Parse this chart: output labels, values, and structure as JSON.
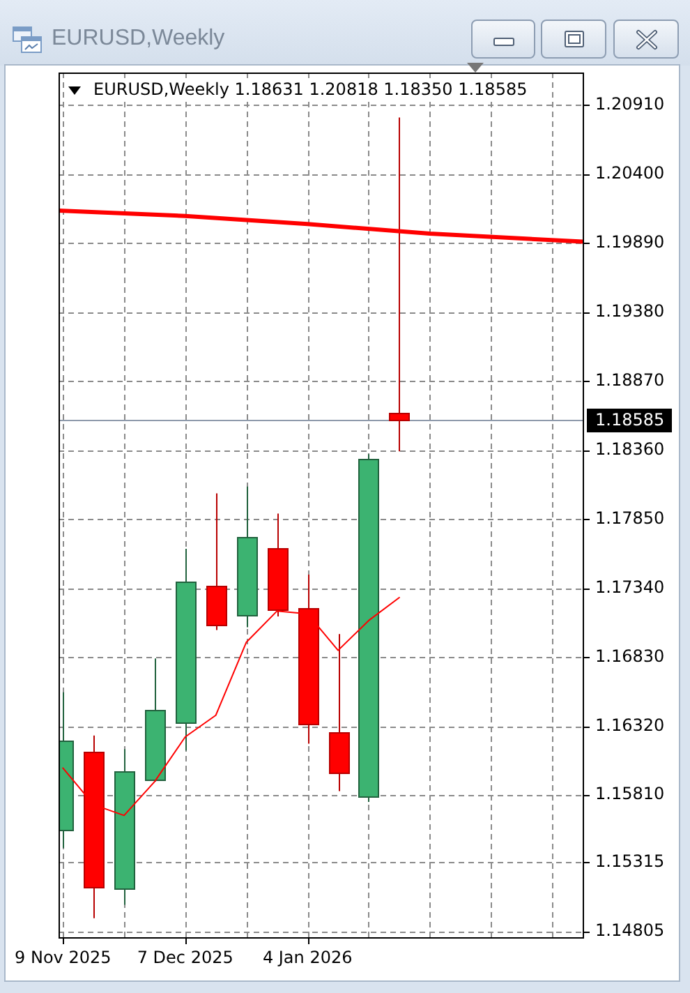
{
  "chart_data": {
    "type": "candlestick",
    "title": "EURUSD,Weekly",
    "subtitle": "EURUSD,Weekly 1.18631 1.20818 1.18350 1.18585",
    "x": [
      "2025-11-09",
      "2025-11-16",
      "2025-11-23",
      "2025-11-30",
      "2025-12-07",
      "2025-12-14",
      "2025-12-21",
      "2025-12-28",
      "2026-01-04",
      "2026-01-11",
      "2026-01-18",
      "2026-01-25"
    ],
    "ohlc": [
      [
        1.1555,
        1.1657,
        1.1542,
        1.1621
      ],
      [
        1.1613,
        1.1625,
        1.149,
        1.1513
      ],
      [
        1.1512,
        1.1615,
        1.15,
        1.1599
      ],
      [
        1.1592,
        1.1682,
        1.1591,
        1.1644
      ],
      [
        1.1635,
        1.1763,
        1.1614,
        1.1739
      ],
      [
        1.1736,
        1.1804,
        1.1703,
        1.1707
      ],
      [
        1.1714,
        1.1809,
        1.1705,
        1.1772
      ],
      [
        1.1764,
        1.1789,
        1.1713,
        1.1718
      ],
      [
        1.1719,
        1.1744,
        1.1619,
        1.1634
      ],
      [
        1.1628,
        1.17,
        1.1584,
        1.1598
      ],
      [
        1.158,
        1.1833,
        1.1576,
        1.1829
      ],
      [
        1.18631,
        1.20818,
        1.1835,
        1.18585
      ]
    ],
    "colors": [
      "#3cb371",
      "#ff0000",
      "#3cb371",
      "#3cb371",
      "#3cb371",
      "#ff0000",
      "#3cb371",
      "#ff0000",
      "#ff0000",
      "#ff0000",
      "#3cb371",
      "#ff0000"
    ],
    "series": [
      {
        "type": "line",
        "color": "#ff0000",
        "x": [
          "2025-11-09",
          "2025-11-16",
          "2025-11-23",
          "2025-11-30",
          "2025-12-07",
          "2025-12-14",
          "2025-12-21",
          "2025-12-28",
          "2026-01-04",
          "2026-01-11",
          "2026-01-18",
          "2026-01-25"
        ],
        "values": [
          1.1601,
          1.1574,
          1.1566,
          1.1591,
          1.1624,
          1.164,
          1.1694,
          1.1717,
          1.1715,
          1.1688,
          1.171,
          1.1727
        ]
      },
      {
        "type": "line",
        "color": "#ff0000",
        "x": [
          "2025-11-08",
          "2025-12-07",
          "2026-01-04",
          "2026-02-01",
          "2026-03-08"
        ],
        "values": [
          1.2013,
          1.2009,
          1.2003,
          1.1996,
          1.199
        ]
      }
    ],
    "xlim": [
      "2025-11-08",
      "2026-03-08"
    ],
    "xticks": [
      {
        "value": "2025-11-09",
        "label": "9 Nov 2025"
      },
      {
        "value": "2025-11-23",
        "label": null
      },
      {
        "value": "2025-12-07",
        "label": "7 Dec 2025"
      },
      {
        "value": "2025-12-21",
        "label": null
      },
      {
        "value": "2026-01-04",
        "label": "4 Jan 2026"
      },
      {
        "value": "2026-01-18",
        "label": null
      },
      {
        "value": "2026-02-01",
        "label": null
      },
      {
        "value": "2026-02-15",
        "label": null
      },
      {
        "value": "2026-03-01",
        "label": null
      }
    ],
    "ylim": [
      1.1476,
      1.2115
    ],
    "yticks": [
      {
        "value": 1.2091,
        "label": "1.20910"
      },
      {
        "value": 1.204,
        "label": "1.20400"
      },
      {
        "value": 1.1989,
        "label": "1.19890"
      },
      {
        "value": 1.1938,
        "label": "1.19380"
      },
      {
        "value": 1.1887,
        "label": "1.18870"
      },
      {
        "value": 1.1836,
        "label": "1.18360"
      },
      {
        "value": 1.1785,
        "label": "1.17850"
      },
      {
        "value": 1.1734,
        "label": "1.17340"
      },
      {
        "value": 1.1683,
        "label": "1.16830"
      },
      {
        "value": 1.1632,
        "label": "1.16320"
      },
      {
        "value": 1.1581,
        "label": "1.15810"
      },
      1.15315,
      1.14805
    ],
    "grid": true,
    "ref_lines": [
      {
        "axis": "y",
        "value": 1.18585,
        "label": "1.18585",
        "color": "#8e9aab"
      }
    ]
  }
}
